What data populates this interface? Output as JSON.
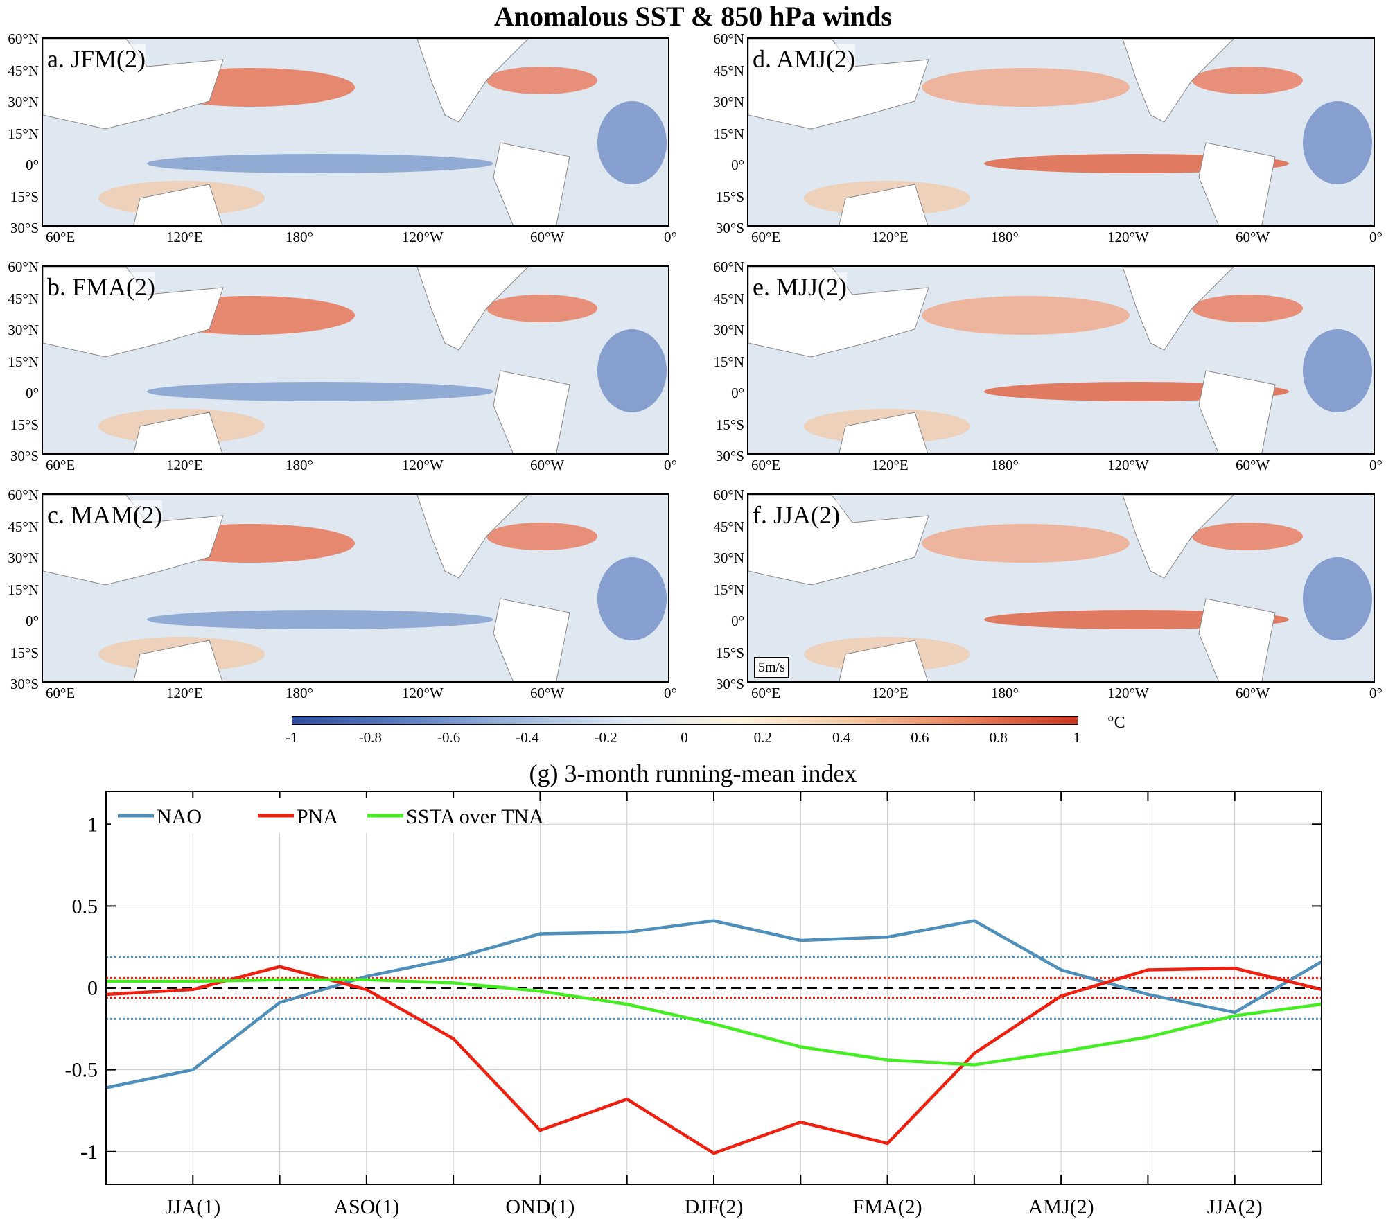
{
  "figure_title": "Anomalous SST & 850 hPa winds",
  "maps": {
    "panels": [
      {
        "label": "a. JFM(2)"
      },
      {
        "label": "b. FMA(2)"
      },
      {
        "label": "c. MAM(2)"
      },
      {
        "label": "d. AMJ(2)"
      },
      {
        "label": "e. MJJ(2)"
      },
      {
        "label": "f. JJA(2)"
      }
    ],
    "lat_ticks": [
      "60°N",
      "45°N",
      "30°N",
      "15°N",
      "0°",
      "15°S",
      "30°S"
    ],
    "lon_ticks": [
      "60°E",
      "120°E",
      "180°",
      "120°W",
      "60°W",
      "0°"
    ],
    "wind_scale": "5m/s"
  },
  "colorbar": {
    "ticks": [
      "-1",
      "-0.8",
      "-0.6",
      "-0.4",
      "-0.2",
      "0",
      "0.2",
      "0.4",
      "0.6",
      "0.8",
      "1"
    ],
    "unit": "°C",
    "low_color": "#2b4c9b",
    "high_color": "#c8341f"
  },
  "chart_data": {
    "type": "line",
    "title": "(g) 3-month running-mean index",
    "x_tick_labels": [
      "JJA(1)",
      "ASO(1)",
      "OND(1)",
      "DJF(2)",
      "FMA(2)",
      "AMJ(2)",
      "JJA(2)"
    ],
    "y_tick_labels": [
      "1",
      "0.5",
      "0",
      "-0.5",
      "-1"
    ],
    "ylim": [
      -1.2,
      1.2
    ],
    "grid": true,
    "legend": "top-left",
    "series": [
      {
        "name": "NAO",
        "color": "#4f8fbb",
        "values": [
          -0.61,
          -0.5,
          -0.09,
          0.07,
          0.18,
          0.33,
          0.34,
          0.41,
          0.29,
          0.31,
          0.41,
          0.11,
          -0.04,
          -0.15,
          0.16
        ]
      },
      {
        "name": "PNA",
        "color": "#f02010",
        "values": [
          -0.04,
          -0.01,
          0.13,
          -0.01,
          -0.31,
          -0.87,
          -0.68,
          -1.01,
          -0.82,
          -0.95,
          -0.4,
          -0.05,
          0.11,
          0.12,
          -0.01
        ]
      },
      {
        "name": "SSTA over TNA",
        "color": "#44ee22",
        "values": [
          0.04,
          0.04,
          0.05,
          0.05,
          0.03,
          -0.02,
          -0.1,
          -0.22,
          -0.36,
          -0.44,
          -0.47,
          -0.39,
          -0.3,
          -0.17,
          -0.1
        ]
      }
    ],
    "reference_lines": [
      {
        "value": 0,
        "color": "#000000",
        "style": "dashed"
      },
      {
        "value": 0.19,
        "color": "#4f8fbb",
        "style": "dotted"
      },
      {
        "value": -0.19,
        "color": "#4f8fbb",
        "style": "dotted"
      },
      {
        "value": 0.06,
        "color": "#f02010",
        "style": "dotted"
      },
      {
        "value": -0.06,
        "color": "#f02010",
        "style": "dotted"
      }
    ]
  }
}
